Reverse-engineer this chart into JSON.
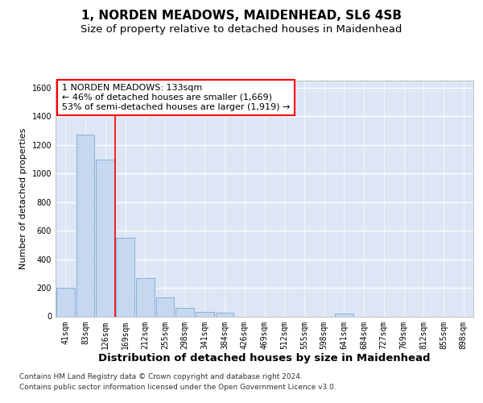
{
  "title": "1, NORDEN MEADOWS, MAIDENHEAD, SL6 4SB",
  "subtitle": "Size of property relative to detached houses in Maidenhead",
  "xlabel": "Distribution of detached houses by size in Maidenhead",
  "ylabel": "Number of detached properties",
  "categories": [
    "41sqm",
    "83sqm",
    "126sqm",
    "169sqm",
    "212sqm",
    "255sqm",
    "298sqm",
    "341sqm",
    "384sqm",
    "426sqm",
    "469sqm",
    "512sqm",
    "555sqm",
    "598sqm",
    "641sqm",
    "684sqm",
    "727sqm",
    "769sqm",
    "812sqm",
    "855sqm",
    "898sqm"
  ],
  "values": [
    200,
    1270,
    1100,
    550,
    270,
    130,
    60,
    30,
    25,
    0,
    0,
    0,
    0,
    0,
    20,
    0,
    0,
    0,
    0,
    0,
    0
  ],
  "bar_color": "#c5d8f0",
  "bar_edge_color": "#7aa8d4",
  "ylim_max": 1650,
  "yticks": [
    0,
    200,
    400,
    600,
    800,
    1000,
    1200,
    1400,
    1600
  ],
  "red_line_x": 2.5,
  "annotation_line1": "1 NORDEN MEADOWS: 133sqm",
  "annotation_line2": "← 46% of detached houses are smaller (1,669)",
  "annotation_line3": "53% of semi-detached houses are larger (1,919) →",
  "footer1": "Contains HM Land Registry data © Crown copyright and database right 2024.",
  "footer2": "Contains public sector information licensed under the Open Government Licence v3.0.",
  "bg_color": "#dce6f5",
  "title_fontsize": 11,
  "subtitle_fontsize": 9.5,
  "annot_fontsize": 8,
  "ylabel_fontsize": 8,
  "xlabel_fontsize": 9.5,
  "tick_fontsize": 7,
  "footer_fontsize": 6.5
}
